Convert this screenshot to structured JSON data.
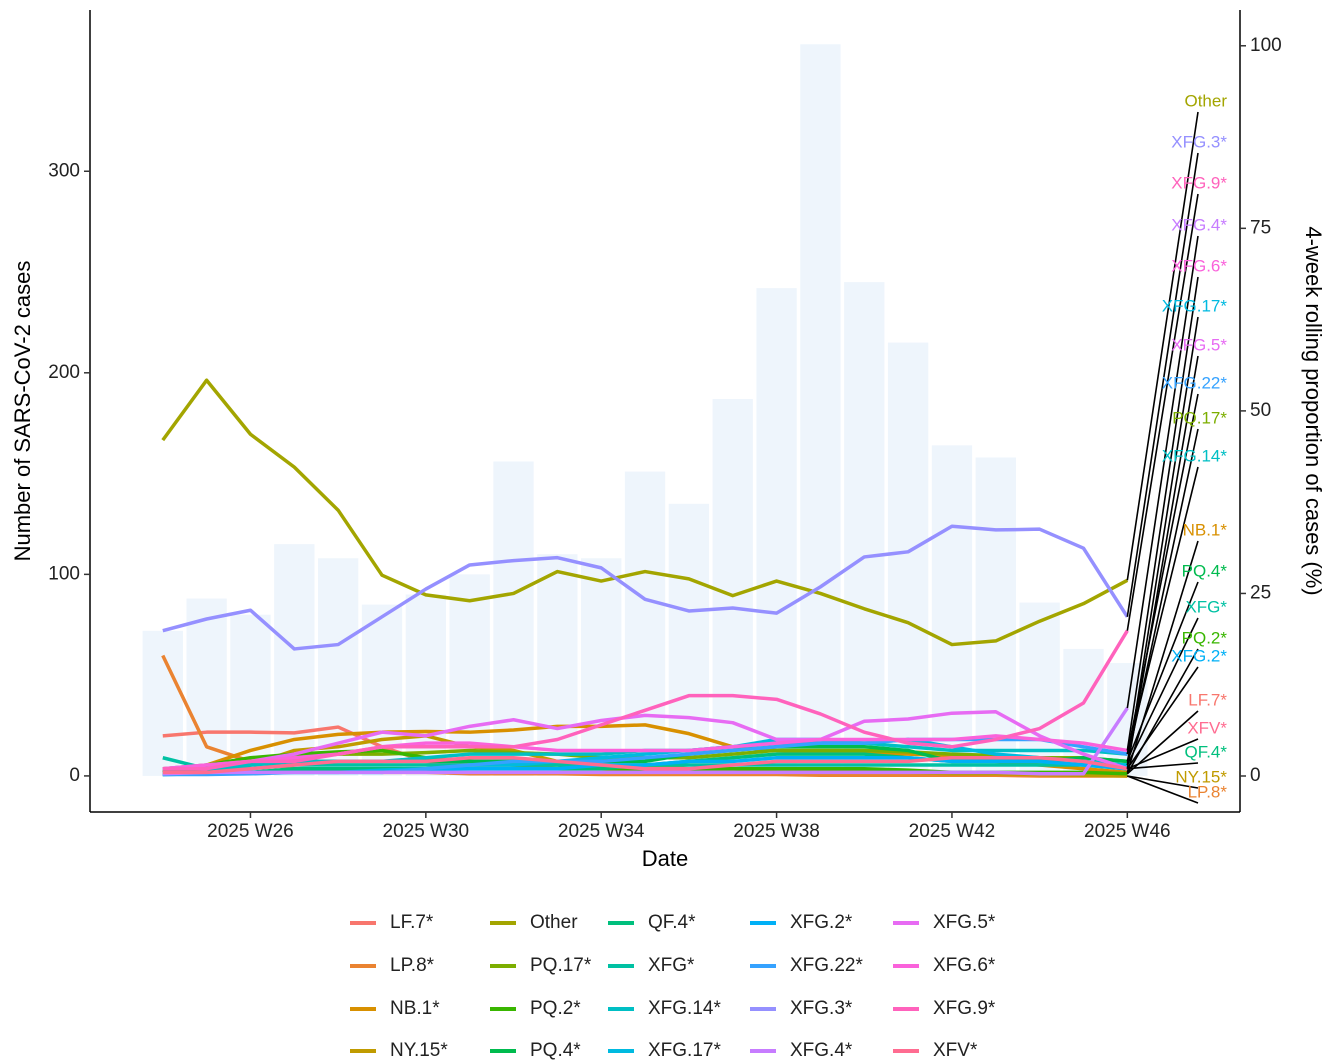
{
  "chart_data": {
    "type": "line",
    "xlabel": "Date",
    "ylabel": "Number of SARS-CoV-2 cases",
    "y2label": "4-week rolling proportion of cases (%)",
    "x": [
      24,
      25,
      26,
      27,
      28,
      29,
      30,
      31,
      32,
      33,
      34,
      35,
      36,
      37,
      38,
      39,
      40,
      41,
      42,
      43,
      44,
      45,
      46
    ],
    "xlim": [
      22.34,
      48.57
    ],
    "xticks": [
      {
        "value": 26,
        "label": "2025 W26"
      },
      {
        "value": 30,
        "label": "2025 W30"
      },
      {
        "value": 34,
        "label": "2025 W34"
      },
      {
        "value": 38,
        "label": "2025 W38"
      },
      {
        "value": 42,
        "label": "2025 W42"
      },
      {
        "value": 46,
        "label": "2025 W46"
      }
    ],
    "ylim": [
      -17.9,
      380
    ],
    "yticks": [
      0,
      100,
      200,
      300
    ],
    "y2lim": [
      -4.93,
      104.9
    ],
    "y2ticks": [
      0,
      25,
      50,
      75,
      100
    ],
    "bars": {
      "color": "#eef5fc",
      "values": [
        72,
        88,
        80,
        115,
        108,
        85,
        90,
        100,
        156,
        110,
        108,
        151,
        135,
        187,
        242,
        363,
        245,
        215,
        164,
        158,
        86,
        63,
        56
      ]
    },
    "series": [
      {
        "name": "LF.7*",
        "color": "#F8766D",
        "axis": "y2",
        "values": [
          5.5,
          6,
          6,
          5.9,
          6.7,
          4,
          2,
          1.5,
          1.5,
          1,
          1,
          0.8,
          0.5,
          0.5,
          0.5,
          0.5,
          0.5,
          0.5,
          0.3,
          0.3,
          0.3,
          0.3,
          0.3
        ]
      },
      {
        "name": "LP.8*",
        "color": "#EA8331",
        "axis": "y2",
        "values": [
          16.5,
          4,
          2,
          1,
          0.8,
          0.5,
          0.5,
          0.3,
          0.3,
          0.3,
          0.2,
          0.2,
          0.2,
          0.2,
          0.2,
          0.1,
          0.1,
          0.1,
          0.1,
          0.1,
          0,
          0,
          0
        ]
      },
      {
        "name": "NB.1*",
        "color": "#D89000",
        "axis": "y2",
        "values": [
          0.5,
          1.5,
          3.5,
          5,
          5.7,
          6,
          6.1,
          6,
          6.3,
          6.8,
          6.8,
          7,
          5.8,
          4,
          3.5,
          3.3,
          3.2,
          3,
          2.8,
          2,
          1.5,
          1,
          0.5
        ]
      },
      {
        "name": "NY.15*",
        "color": "#C09B00",
        "axis": "y2",
        "values": [
          0.2,
          0.5,
          1.5,
          3.5,
          4,
          5,
          5.5,
          4,
          3.5,
          2,
          1.5,
          1.5,
          1,
          1,
          0.5,
          0.5,
          0.5,
          0.5,
          0.3,
          0.3,
          0.2,
          0.1,
          0
        ]
      },
      {
        "name": "Other",
        "color": "#A3A500",
        "axis": "y2",
        "values": [
          46,
          54.2,
          46.8,
          42.3,
          36.4,
          27.5,
          24.8,
          24,
          25,
          28,
          26.7,
          28,
          27,
          24.7,
          26.7,
          25,
          22.9,
          21,
          18,
          18.5,
          21.2,
          23.6,
          26.8
        ]
      },
      {
        "name": "PQ.17*",
        "color": "#7CAE00",
        "axis": "y2",
        "values": [
          1,
          1.5,
          2,
          2.5,
          3,
          3,
          3.2,
          3.5,
          3.2,
          3,
          2.5,
          2.5,
          2.5,
          3,
          3.5,
          3.5,
          3.5,
          3.3,
          3,
          2.8,
          2.5,
          2.5,
          2
        ]
      },
      {
        "name": "PQ.2*",
        "color": "#39B600",
        "axis": "y2",
        "values": [
          0.5,
          1.5,
          2.5,
          3,
          3.3,
          3.5,
          2.5,
          2,
          1.5,
          1.5,
          1,
          1,
          1,
          1,
          1,
          1,
          1,
          0.8,
          0.5,
          0.5,
          0.5,
          0.5,
          0.3
        ]
      },
      {
        "name": "PQ.4*",
        "color": "#00BB4E",
        "axis": "y2",
        "values": [
          0.5,
          1,
          1.5,
          2,
          2,
          2,
          2,
          2,
          2,
          2,
          2,
          2,
          3,
          3.5,
          4,
          4,
          4,
          3.5,
          2,
          2,
          2,
          2.5,
          2
        ]
      },
      {
        "name": "QF.4*",
        "color": "#00BF7D",
        "axis": "y2",
        "values": [
          0.3,
          0.5,
          0.5,
          1,
          1,
          1,
          1,
          1,
          1,
          1,
          1,
          1.5,
          2,
          2.5,
          3,
          3,
          3,
          2.5,
          2,
          2,
          2,
          1.5,
          1
        ]
      },
      {
        "name": "XFG*",
        "color": "#00C1A3",
        "axis": "y2",
        "values": [
          2.5,
          1,
          1,
          1.5,
          1.5,
          1.5,
          1.5,
          1.5,
          1.5,
          1.5,
          1.5,
          1.5,
          1.5,
          1.5,
          1.5,
          1.5,
          1.5,
          1.5,
          1.5,
          1.5,
          1.5,
          1.5,
          1.5
        ]
      },
      {
        "name": "XFG.14*",
        "color": "#00BFC4",
        "axis": "y2",
        "values": [
          1,
          1,
          1.5,
          2,
          2,
          2,
          2.5,
          3,
          3,
          3,
          3,
          3.5,
          3.5,
          4,
          4.5,
          4.5,
          4.5,
          4,
          3.5,
          3.5,
          3.5,
          3.5,
          3
        ]
      },
      {
        "name": "XFG.17*",
        "color": "#00BAE0",
        "axis": "y2",
        "values": [
          0.2,
          0.3,
          0.5,
          0.5,
          0.5,
          0.8,
          1,
          1.5,
          1.5,
          2,
          2.5,
          3,
          3.5,
          4,
          5,
          5,
          4.5,
          5,
          4,
          3,
          2.5,
          2,
          1.5
        ]
      },
      {
        "name": "XFG.2*",
        "color": "#00B0F6",
        "axis": "y2",
        "values": [
          0.2,
          0.3,
          0.5,
          0.5,
          0.5,
          0.5,
          0.8,
          1,
          1,
          1,
          1.5,
          1.5,
          2,
          2,
          2.5,
          2.5,
          2.5,
          2.5,
          2,
          2,
          2,
          1.5,
          1
        ]
      },
      {
        "name": "XFG.22*",
        "color": "#35A2FF",
        "axis": "y2",
        "values": [
          0.2,
          0.2,
          0.3,
          0.5,
          0.5,
          0.5,
          1,
          1.5,
          2,
          2,
          2,
          2.5,
          3,
          3.5,
          4,
          4.5,
          4.5,
          5,
          5,
          5,
          5,
          4,
          3
        ]
      },
      {
        "name": "XFG.3*",
        "color": "#9590FF",
        "axis": "y2",
        "values": [
          19.9,
          21.5,
          22.7,
          17.4,
          18,
          21.8,
          25.6,
          28.9,
          29.5,
          29.9,
          28.5,
          24.2,
          22.6,
          23,
          22.3,
          25.9,
          30,
          30.7,
          34.2,
          33.7,
          33.8,
          31.2,
          21.8
        ]
      },
      {
        "name": "XFG.4*",
        "color": "#C77CFF",
        "axis": "y2",
        "values": [
          0.3,
          0.5,
          0.5,
          0.5,
          0.5,
          0.5,
          0.5,
          0.5,
          0.5,
          0.5,
          0.5,
          0.5,
          0.5,
          0.5,
          0.5,
          0.5,
          0.5,
          0.5,
          0.5,
          0.5,
          0.3,
          0.3,
          9.3
        ]
      },
      {
        "name": "XFG.5*",
        "color": "#E76BF3",
        "axis": "y2",
        "values": [
          1,
          1.5,
          2,
          3,
          4.5,
          6,
          5.5,
          6.8,
          7.7,
          6.5,
          7.6,
          8.3,
          8,
          7.3,
          5,
          5,
          7.5,
          7.8,
          8.6,
          8.8,
          5.5,
          3,
          1
        ]
      },
      {
        "name": "XFG.6*",
        "color": "#FA62DB",
        "axis": "y2",
        "values": [
          1,
          1.5,
          2,
          2.5,
          3,
          4,
          4.5,
          4.5,
          4,
          3.5,
          3.5,
          3.5,
          3.5,
          4,
          4.5,
          5,
          5,
          5,
          5,
          5.5,
          5,
          4.5,
          3.5
        ]
      },
      {
        "name": "XFG.9*",
        "color": "#FF62BC",
        "axis": "y2",
        "values": [
          1,
          1,
          2,
          2,
          3,
          4,
          4,
          4,
          4,
          5,
          7,
          9,
          11,
          11,
          10.5,
          8.5,
          6,
          4.5,
          4,
          5,
          6.5,
          10,
          19.9
        ]
      },
      {
        "name": "XFV*",
        "color": "#FF6C91",
        "axis": "y2",
        "values": [
          0.5,
          0.5,
          1,
          1.5,
          2,
          2,
          2,
          2.5,
          2.5,
          2,
          1.5,
          1,
          1,
          1.5,
          2,
          2,
          2,
          2,
          2.5,
          2.5,
          2.5,
          2,
          1
        ]
      }
    ]
  }
}
